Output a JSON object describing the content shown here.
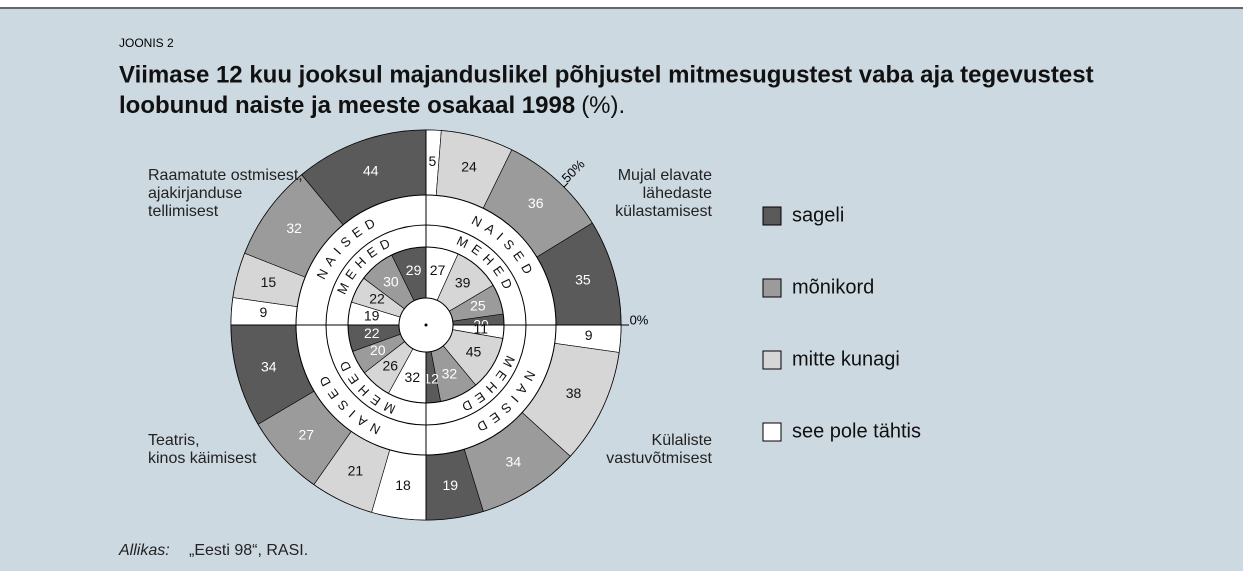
{
  "chart_data": {
    "type": "radial",
    "label": "JOONIS 2",
    "title": "Viimase 12 kuu jooksul majanduslikel põhjustel mitmesugustest vaba aja tegevustest",
    "title_line2": "loobunud naiste ja meeste osakaal 1998",
    "title_suffix": "(%).",
    "ring_labels": {
      "outer": "NAISED",
      "inner": "MEHED"
    },
    "scale_ticks": [
      {
        "value": 0,
        "label": "0%"
      },
      {
        "value": 50,
        "label": "50%"
      }
    ],
    "series": [
      {
        "name": "sageli",
        "color": "#5a5a5a"
      },
      {
        "name": "mõnikord",
        "color": "#9b9b9b"
      },
      {
        "name": "mitte kunagi",
        "color": "#d6d6d6"
      },
      {
        "name": "see pole tähtis",
        "color": "#ffffff"
      }
    ],
    "quadrants": [
      {
        "name": [
          "Mujal elavate",
          "lähedaste",
          "külastamisest"
        ],
        "outer": [
          35,
          36,
          24,
          5
        ],
        "inner": [
          20,
          25,
          39,
          27
        ]
      },
      {
        "name": [
          "Külaliste",
          "vastuvõtmisest"
        ],
        "outer": [
          19,
          34,
          38,
          9
        ],
        "inner": [
          12,
          32,
          45,
          11
        ]
      },
      {
        "name": [
          "Teatris,",
          "kinos käimisest"
        ],
        "outer": [
          34,
          27,
          21,
          18
        ],
        "inner": [
          22,
          20,
          26,
          32
        ]
      },
      {
        "name": [
          "Raamatute ostmisest,",
          "ajakirjanduse",
          "tellimisest"
        ],
        "outer": [
          44,
          32,
          15,
          9
        ],
        "inner": [
          29,
          30,
          22,
          19
        ]
      }
    ],
    "source_label": "Allikas:",
    "source": "„Eesti 98“, RASI."
  }
}
